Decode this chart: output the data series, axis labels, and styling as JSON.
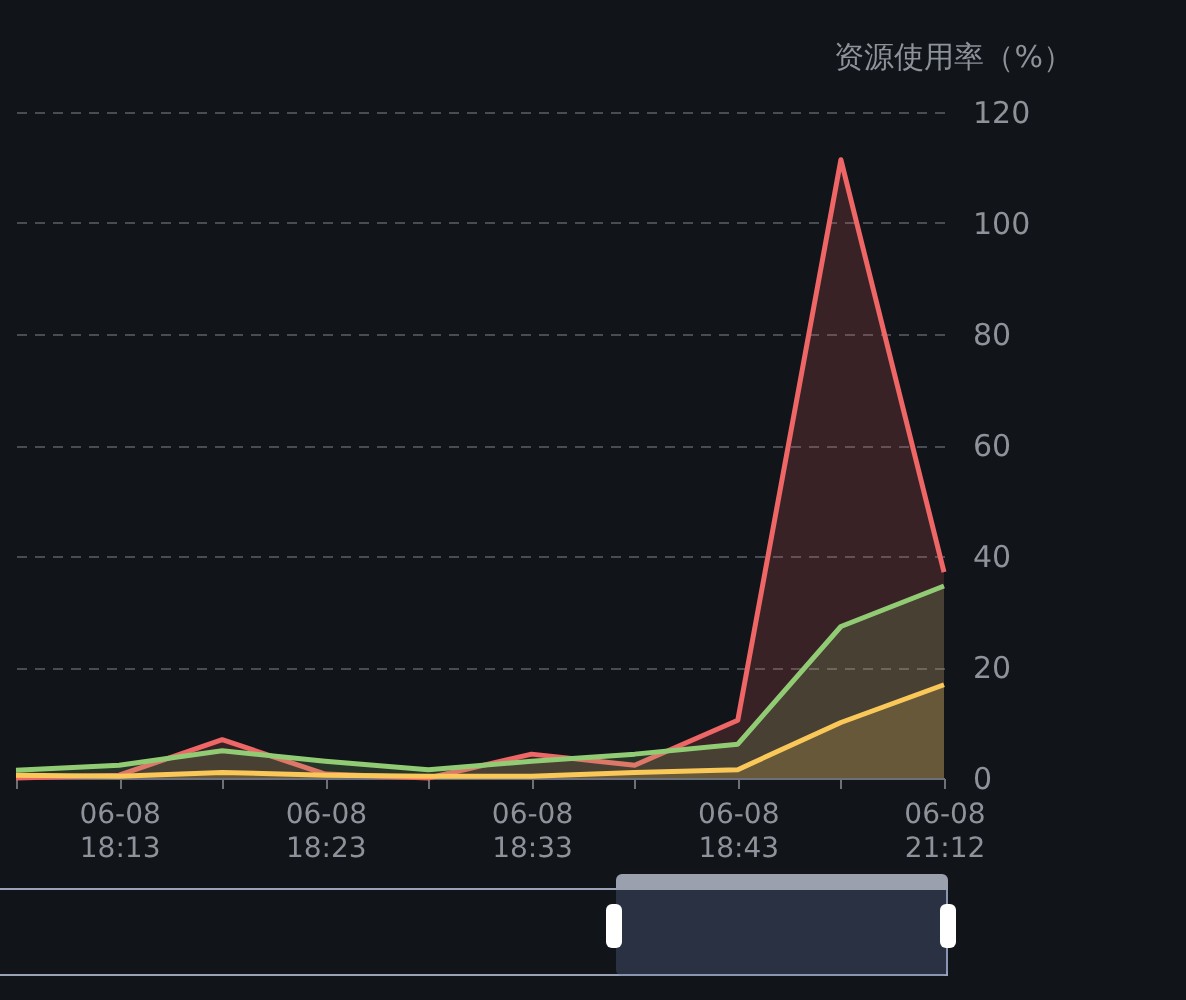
{
  "chart_data": {
    "type": "area",
    "ylabel": "资源使用率（%）",
    "categories": [
      null,
      "06-08\n18:13",
      null,
      "06-08\n18:23",
      null,
      "06-08\n18:33",
      null,
      "06-08\n18:43",
      null,
      "06-08\n21:12"
    ],
    "series": [
      {
        "color": "#ee6666",
        "values": [
          0,
          0.5,
          6.9,
          0.7,
          0,
          4.3,
          2.3,
          10.4,
          111.4,
          37.1
        ]
      },
      {
        "color": "#91cc75",
        "values": [
          1.4,
          2.3,
          4.9,
          3.0,
          1.5,
          3.0,
          4.3,
          6.1,
          27.3,
          34.6
        ]
      },
      {
        "color": "#fac858",
        "values": [
          0.5,
          0.3,
          1,
          0.5,
          0.3,
          0.3,
          1,
          1.5,
          10,
          16.8
        ]
      }
    ],
    "ylim": [
      0,
      120
    ],
    "yticks": [
      0,
      20,
      40,
      60,
      80,
      100,
      120
    ],
    "grid": "y"
  }
}
